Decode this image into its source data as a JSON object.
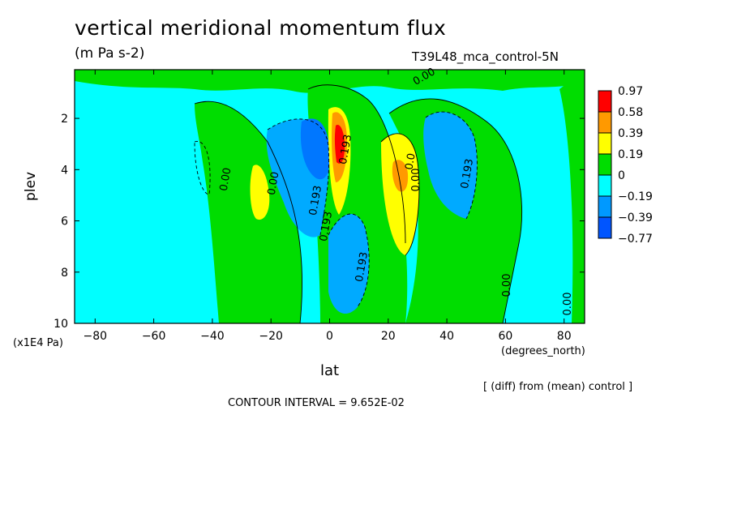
{
  "chart_data": {
    "type": "contour",
    "title": "vertical meridional momentum flux",
    "units": "(m Pa s-2)",
    "run_label": "T39L48_mca_control-5N",
    "xlabel": "lat",
    "x_units": "(degrees_north)",
    "ylabel": "plev",
    "y_units": "(x1E4 Pa)",
    "xlim": [
      -87,
      87
    ],
    "ylim": [
      10,
      0.1
    ],
    "x_ticks": [
      -80,
      -60,
      -40,
      -20,
      0,
      20,
      40,
      60,
      80
    ],
    "x_tick_labels": [
      "-80",
      "-60",
      "-40",
      "-20",
      "0",
      "20",
      "40",
      "60",
      "80"
    ],
    "y_ticks": [
      2,
      4,
      6,
      8,
      10
    ],
    "y_tick_labels": [
      "2",
      "4",
      "6",
      "8",
      "10"
    ],
    "contour_interval_text": "CONTOUR INTERVAL = 9.652E-02",
    "comparison_text": "[ (diff) from (mean) control ]",
    "colorbar": {
      "labels": [
        "0.97",
        "0.58",
        "0.39",
        "0.19",
        "0",
        "−0.19",
        "−0.39",
        "−0.77"
      ],
      "colors": [
        "#ff0000",
        "#ff9900",
        "#ffff00",
        "#00dd00",
        "#00ffff",
        "#0099ff",
        "#0055ff"
      ]
    },
    "contour_labels": [
      "0.00",
      "0.00",
      "0.00",
      "0.193",
      "0.0",
      "0.193",
      "0.193",
      "0.00",
      "0.00",
      "0.00",
      "0.193",
      "0.193"
    ],
    "regions": [
      {
        "name": "tropics-positive-core",
        "lat": [
          0,
          6
        ],
        "plev": [
          1.5,
          4.5
        ],
        "max_level": "0.97"
      },
      {
        "name": "tropics-negative-core",
        "lat": [
          -8,
          -2
        ],
        "plev": [
          2,
          4.5
        ],
        "min_level": "-0.39"
      },
      {
        "name": "nh-positive-lobe",
        "lat": [
          18,
          30
        ],
        "plev": [
          2.5,
          7.5
        ],
        "max_level": "0.58"
      },
      {
        "name": "nh-negative-lobe",
        "lat": [
          34,
          50
        ],
        "plev": [
          2,
          6
        ],
        "min_level": "-0.39"
      },
      {
        "name": "sh-positive-lobe",
        "lat": [
          -28,
          -20
        ],
        "plev": [
          3.5,
          6
        ],
        "max_level": "0.39"
      },
      {
        "name": "deep-negative-lobe",
        "lat": [
          5,
          14
        ],
        "plev": [
          6,
          10
        ],
        "min_level": "-0.39"
      }
    ]
  }
}
